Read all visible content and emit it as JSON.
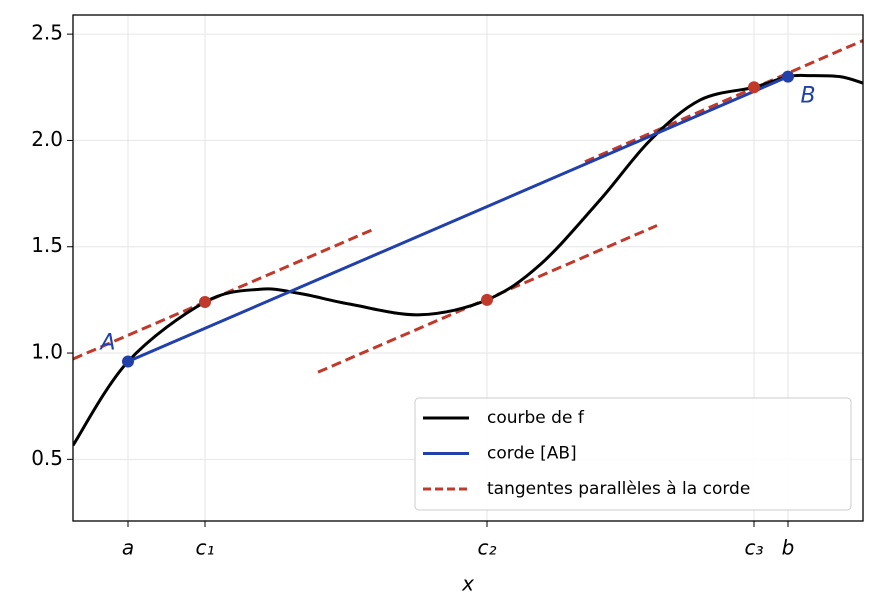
{
  "chart_data": {
    "type": "line",
    "xlabel": "x",
    "xlim": [
      -0.55,
      7.35
    ],
    "ylim": [
      0.21,
      2.59
    ],
    "xticks": [
      {
        "value": 0,
        "label": "a"
      },
      {
        "value": 0.77,
        "label": "c₁"
      },
      {
        "value": 3.59,
        "label": "c₂"
      },
      {
        "value": 6.26,
        "label": "c₃"
      },
      {
        "value": 6.6,
        "label": "b"
      }
    ],
    "yticks": [
      {
        "value": 0.5,
        "label": "0.5"
      },
      {
        "value": 1.0,
        "label": "1.0"
      },
      {
        "value": 1.5,
        "label": "1.5"
      },
      {
        "value": 2.0,
        "label": "2.0"
      },
      {
        "value": 2.5,
        "label": "2.5"
      }
    ],
    "grid": true,
    "legend": "lower right",
    "series": [
      {
        "name": "courbe de f",
        "color": "#000000",
        "x": [
          -0.55,
          0,
          0.77,
          1.32,
          1.72,
          2.22,
          2.92,
          3.59,
          4.12,
          4.72,
          5.22,
          5.72,
          6.26,
          6.6,
          6.82,
          7.12,
          7.35
        ],
        "values": [
          0.566,
          0.96,
          1.24,
          1.3,
          1.28,
          1.23,
          1.18,
          1.25,
          1.415,
          1.72,
          2.0,
          2.19,
          2.25,
          2.3,
          2.305,
          2.3,
          2.27
        ]
      },
      {
        "name": "corde [AB]",
        "color": "#2140aa",
        "x": [
          0,
          6.6
        ],
        "values": [
          0.96,
          2.3
        ]
      }
    ],
    "tangents": {
      "name": "tangentes parallèles à la corde",
      "color": "#c0392b",
      "lines": [
        {
          "x": [
            -0.55,
            2.47
          ],
          "values": [
            0.972,
            1.585
          ]
        },
        {
          "x": [
            1.9,
            5.29
          ],
          "values": [
            0.91,
            1.6
          ]
        },
        {
          "x": [
            4.57,
            7.35
          ],
          "values": [
            1.9,
            2.47
          ]
        }
      ]
    },
    "points": [
      {
        "label": "A",
        "x": 0,
        "y": 0.96,
        "color": "#2140aa"
      },
      {
        "label": "B",
        "x": 6.6,
        "y": 2.3,
        "color": "#2140aa"
      },
      {
        "x": 0.77,
        "y": 1.24,
        "color": "#c0392b"
      },
      {
        "x": 3.59,
        "y": 1.25,
        "color": "#c0392b"
      },
      {
        "x": 6.26,
        "y": 2.25,
        "color": "#c0392b"
      }
    ]
  }
}
